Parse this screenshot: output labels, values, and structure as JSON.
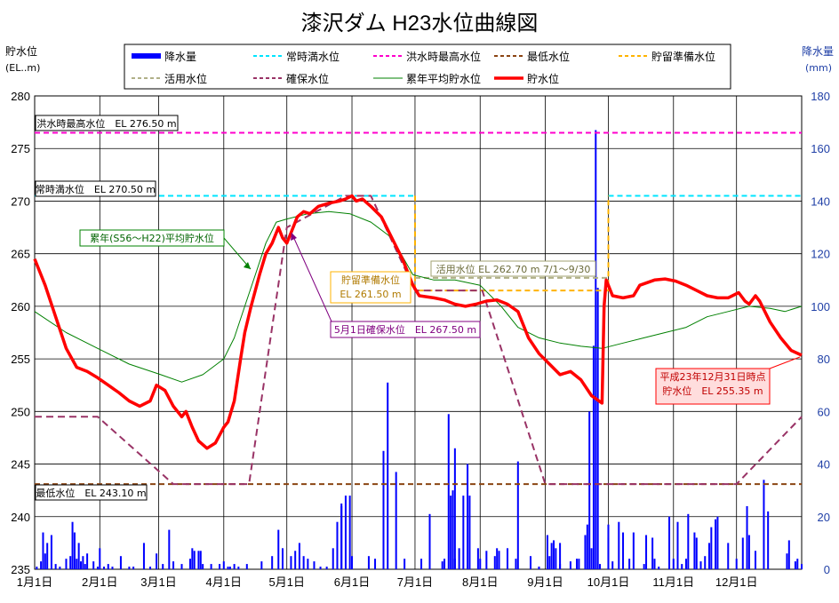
{
  "chart_data": {
    "type": "line",
    "title": "漆沢ダム H23水位曲線図",
    "y_left_label": [
      "貯水位",
      "(EL..m)"
    ],
    "y_right_label": [
      "降水量",
      "(mm)"
    ],
    "y_left_range": [
      235,
      280
    ],
    "y_left_ticks": [
      "235",
      "240",
      "245",
      "250",
      "255",
      "260",
      "265",
      "270",
      "275",
      "280"
    ],
    "y_right_range": [
      0,
      180
    ],
    "y_right_ticks": [
      "0",
      "20",
      "40",
      "60",
      "80",
      "100",
      "120",
      "140",
      "160",
      "180"
    ],
    "x_ticks": [
      "1月1日",
      "2月1日",
      "3月1日",
      "4月1日",
      "5月1日",
      "6月1日",
      "7月1日",
      "8月1日",
      "9月1日",
      "10月1日",
      "11月1日",
      "12月1日"
    ],
    "x_tick_days": [
      0,
      31,
      59,
      90,
      120,
      151,
      181,
      212,
      243,
      273,
      304,
      334
    ],
    "x_range": [
      0,
      365
    ],
    "grid": true,
    "legend_position": "top",
    "legend": [
      {
        "label": "降水量",
        "color": "#0000ff",
        "style": "bar"
      },
      {
        "label": "常時満水位",
        "color": "#00e5ff",
        "style": "dash"
      },
      {
        "label": "洪水時最高水位",
        "color": "#ff00cc",
        "style": "dash"
      },
      {
        "label": "最低水位",
        "color": "#8b4513",
        "style": "dash"
      },
      {
        "label": "貯留準備水位",
        "color": "#ffb300",
        "style": "dash"
      },
      {
        "label": "活用水位",
        "color": "#b0b088",
        "style": "dash"
      },
      {
        "label": "確保水位",
        "color": "#993366",
        "style": "dash"
      },
      {
        "label": "累年平均貯水位",
        "color": "#008000",
        "style": "thin"
      },
      {
        "label": "貯水位",
        "color": "#ff0000",
        "style": "thick"
      }
    ],
    "annotations": [
      {
        "text": "洪水時最高水位　EL 276.50 m",
        "box": "black"
      },
      {
        "text": "常時満水位　EL 270.50 m",
        "box": "black"
      },
      {
        "text": "最低水位　EL 243.10 m",
        "box": "black"
      },
      {
        "text": "累年(S56〜H22)平均貯水位",
        "box": "green"
      },
      {
        "text": "貯留準備水位\nEL 261.50 m",
        "box": "orange"
      },
      {
        "text": "活用水位 EL 262.70 m 7/1〜9/30",
        "box": "olive"
      },
      {
        "text": "5月1日確保水位　EL 267.50 m",
        "box": "purple"
      },
      {
        "text": "平成23年12月31日時点\n貯水位　EL 255.35 m",
        "box": "red"
      }
    ],
    "series": [
      {
        "name": "洪水時最高水位",
        "points": [
          [
            0,
            276.5
          ],
          [
            365,
            276.5
          ]
        ]
      },
      {
        "name": "常時満水位",
        "points": [
          [
            0,
            270.5
          ],
          [
            181,
            270.5
          ],
          [
            null,
            null
          ],
          [
            273,
            270.5
          ],
          [
            365,
            270.5
          ]
        ]
      },
      {
        "name": "最低水位",
        "points": [
          [
            0,
            243.1
          ],
          [
            365,
            243.1
          ]
        ]
      },
      {
        "name": "貯留準備水位",
        "points": [
          [
            181,
            270.5
          ],
          [
            181,
            261.5
          ],
          [
            273,
            261.5
          ],
          [
            273,
            270.5
          ]
        ]
      },
      {
        "name": "活用水位",
        "points": [
          [
            181,
            262.7
          ],
          [
            273,
            262.7
          ]
        ]
      },
      {
        "name": "確保水位",
        "points": [
          [
            0,
            249.5
          ],
          [
            30,
            249.5
          ],
          [
            66,
            243.1
          ],
          [
            102,
            243.1
          ],
          [
            120,
            267.5
          ],
          [
            148,
            270.5
          ],
          [
            160,
            270.5
          ],
          [
            181,
            261.5
          ],
          [
            213,
            261.5
          ],
          [
            243,
            243.1
          ],
          [
            334,
            243.1
          ],
          [
            365,
            249.5
          ]
        ]
      },
      {
        "name": "累年平均貯水位",
        "points": [
          [
            0,
            259.5
          ],
          [
            15,
            257.5
          ],
          [
            30,
            256
          ],
          [
            45,
            254.5
          ],
          [
            60,
            253.5
          ],
          [
            70,
            252.8
          ],
          [
            80,
            253.5
          ],
          [
            90,
            255
          ],
          [
            95,
            257
          ],
          [
            100,
            260
          ],
          [
            105,
            263
          ],
          [
            110,
            266
          ],
          [
            115,
            268
          ],
          [
            120,
            268.3
          ],
          [
            130,
            268.8
          ],
          [
            140,
            269
          ],
          [
            150,
            268.8
          ],
          [
            160,
            268
          ],
          [
            170,
            266.5
          ],
          [
            180,
            263
          ],
          [
            190,
            262.5
          ],
          [
            200,
            262.5
          ],
          [
            212,
            262
          ],
          [
            222,
            260
          ],
          [
            230,
            258
          ],
          [
            240,
            257
          ],
          [
            250,
            256.5
          ],
          [
            260,
            256.2
          ],
          [
            270,
            256
          ],
          [
            280,
            256.5
          ],
          [
            290,
            257
          ],
          [
            300,
            257.5
          ],
          [
            310,
            258
          ],
          [
            320,
            259
          ],
          [
            330,
            259.5
          ],
          [
            340,
            260
          ],
          [
            350,
            259.8
          ],
          [
            357,
            259.5
          ],
          [
            365,
            260
          ]
        ]
      },
      {
        "name": "貯水位",
        "points": [
          [
            0,
            264.5
          ],
          [
            5,
            262
          ],
          [
            10,
            259
          ],
          [
            15,
            256
          ],
          [
            20,
            254.2
          ],
          [
            25,
            253.8
          ],
          [
            30,
            253.2
          ],
          [
            35,
            252.5
          ],
          [
            40,
            251.8
          ],
          [
            45,
            251
          ],
          [
            50,
            250.5
          ],
          [
            55,
            251
          ],
          [
            58,
            252.5
          ],
          [
            62,
            252
          ],
          [
            66,
            250.5
          ],
          [
            70,
            249.5
          ],
          [
            72,
            250
          ],
          [
            75,
            248.5
          ],
          [
            78,
            247.2
          ],
          [
            82,
            246.5
          ],
          [
            86,
            247
          ],
          [
            90,
            248.5
          ],
          [
            92,
            249
          ],
          [
            95,
            251
          ],
          [
            98,
            255
          ],
          [
            100,
            257.5
          ],
          [
            103,
            260
          ],
          [
            107,
            263
          ],
          [
            110,
            265
          ],
          [
            113,
            266
          ],
          [
            116,
            267.5
          ],
          [
            118,
            266.5
          ],
          [
            120,
            266
          ],
          [
            122,
            267
          ],
          [
            125,
            268.5
          ],
          [
            128,
            269
          ],
          [
            131,
            268.8
          ],
          [
            135,
            269.5
          ],
          [
            140,
            269.8
          ],
          [
            145,
            270
          ],
          [
            148,
            270.2
          ],
          [
            151,
            270.5
          ],
          [
            153,
            270
          ],
          [
            156,
            270.2
          ],
          [
            160,
            269.5
          ],
          [
            165,
            268.5
          ],
          [
            170,
            266.5
          ],
          [
            175,
            264.5
          ],
          [
            180,
            262
          ],
          [
            183,
            261
          ],
          [
            190,
            260.8
          ],
          [
            195,
            260.6
          ],
          [
            200,
            260.2
          ],
          [
            205,
            260
          ],
          [
            210,
            260.2
          ],
          [
            215,
            260.5
          ],
          [
            220,
            260.6
          ],
          [
            225,
            260.2
          ],
          [
            230,
            259.5
          ],
          [
            235,
            257
          ],
          [
            240,
            255.5
          ],
          [
            245,
            254.5
          ],
          [
            250,
            253.5
          ],
          [
            255,
            253.8
          ],
          [
            260,
            253
          ],
          [
            265,
            251.5
          ],
          [
            270,
            250.8
          ],
          [
            271,
            260
          ],
          [
            272,
            262.5
          ],
          [
            275,
            261
          ],
          [
            280,
            260.8
          ],
          [
            285,
            261
          ],
          [
            288,
            262
          ],
          [
            295,
            262.5
          ],
          [
            300,
            262.6
          ],
          [
            305,
            262.4
          ],
          [
            310,
            262
          ],
          [
            315,
            261.5
          ],
          [
            320,
            261
          ],
          [
            325,
            260.8
          ],
          [
            330,
            260.8
          ],
          [
            335,
            261.3
          ],
          [
            338,
            260.5
          ],
          [
            340,
            260.2
          ],
          [
            343,
            261
          ],
          [
            345,
            260.5
          ],
          [
            350,
            258.5
          ],
          [
            355,
            257
          ],
          [
            360,
            255.8
          ],
          [
            365,
            255.35
          ]
        ]
      }
    ],
    "rainfall_mm": [
      [
        1,
        1
      ],
      [
        3,
        3
      ],
      [
        4,
        14
      ],
      [
        5,
        6
      ],
      [
        6,
        10
      ],
      [
        8,
        13
      ],
      [
        10,
        2
      ],
      [
        12,
        1
      ],
      [
        15,
        4
      ],
      [
        17,
        5
      ],
      [
        18,
        18
      ],
      [
        19,
        14
      ],
      [
        20,
        4
      ],
      [
        21,
        10
      ],
      [
        22,
        3
      ],
      [
        23,
        5
      ],
      [
        24,
        2
      ],
      [
        25,
        6
      ],
      [
        28,
        3
      ],
      [
        30,
        1
      ],
      [
        31,
        8
      ],
      [
        33,
        1
      ],
      [
        35,
        2
      ],
      [
        37,
        1
      ],
      [
        41,
        5
      ],
      [
        45,
        1
      ],
      [
        47,
        1
      ],
      [
        52,
        10
      ],
      [
        55,
        1
      ],
      [
        58,
        6
      ],
      [
        61,
        2
      ],
      [
        64,
        15
      ],
      [
        66,
        3
      ],
      [
        70,
        2
      ],
      [
        74,
        4
      ],
      [
        75,
        8
      ],
      [
        76,
        7
      ],
      [
        78,
        7
      ],
      [
        79,
        7
      ],
      [
        80,
        2
      ],
      [
        84,
        2
      ],
      [
        88,
        2
      ],
      [
        90,
        3
      ],
      [
        92,
        1
      ],
      [
        93,
        1
      ],
      [
        95,
        2
      ],
      [
        97,
        1
      ],
      [
        101,
        2
      ],
      [
        108,
        3
      ],
      [
        113,
        5
      ],
      [
        116,
        15
      ],
      [
        118,
        8
      ],
      [
        122,
        5
      ],
      [
        124,
        7
      ],
      [
        126,
        10
      ],
      [
        128,
        5
      ],
      [
        130,
        4
      ],
      [
        133,
        3
      ],
      [
        136,
        1
      ],
      [
        139,
        1
      ],
      [
        142,
        8
      ],
      [
        144,
        18
      ],
      [
        146,
        25
      ],
      [
        148,
        28
      ],
      [
        151,
        5
      ],
      [
        159,
        5
      ],
      [
        162,
        4
      ],
      [
        166,
        45
      ],
      [
        168,
        71
      ],
      [
        172,
        37
      ],
      [
        176,
        4
      ],
      [
        188,
        21
      ],
      [
        194,
        3
      ],
      [
        197,
        59
      ],
      [
        198,
        28
      ],
      [
        199,
        30
      ],
      [
        200,
        46
      ],
      [
        202,
        8
      ],
      [
        204,
        28
      ],
      [
        206,
        40
      ],
      [
        207,
        28
      ],
      [
        212,
        4
      ],
      [
        215,
        7
      ],
      [
        219,
        5
      ],
      [
        221,
        7
      ],
      [
        225,
        8
      ],
      [
        230,
        41
      ],
      [
        236,
        5
      ],
      [
        240,
        1
      ],
      [
        244,
        13
      ],
      [
        246,
        10
      ],
      [
        247,
        11
      ],
      [
        248,
        8
      ],
      [
        250,
        2
      ],
      [
        255,
        3
      ],
      [
        258,
        4
      ],
      [
        259,
        4
      ],
      [
        262,
        13
      ],
      [
        263,
        17
      ],
      [
        265,
        8
      ],
      [
        269,
        2
      ],
      [
        273,
        12
      ],
      [
        275,
        3
      ],
      [
        280,
        14
      ],
      [
        283,
        4
      ],
      [
        285,
        14
      ],
      [
        290,
        2
      ],
      [
        291,
        13
      ],
      [
        294,
        12
      ],
      [
        295,
        4
      ],
      [
        297,
        1
      ],
      [
        304,
        4
      ],
      [
        308,
        2
      ],
      [
        310,
        4
      ],
      [
        314,
        14
      ],
      [
        315,
        12
      ],
      [
        317,
        3
      ],
      [
        319,
        5
      ],
      [
        321,
        10
      ],
      [
        322,
        16
      ],
      [
        324,
        19
      ],
      [
        325,
        20
      ],
      [
        330,
        10
      ],
      [
        334,
        4
      ],
      [
        337,
        12
      ],
      [
        340,
        13
      ],
      [
        343,
        7
      ],
      [
        349,
        22
      ],
      [
        358,
        6
      ],
      [
        359,
        11
      ],
      [
        362,
        3
      ],
      [
        363,
        4
      ],
      [
        365,
        2
      ]
    ],
    "rainfall_mm_labeled": [
      [
        146,
        24
      ],
      [
        150,
        28
      ],
      [
        184,
        4
      ],
      [
        195,
        4
      ],
      [
        200,
        4
      ],
      [
        211,
        8
      ],
      [
        220,
        8
      ],
      [
        229,
        4
      ],
      [
        240,
        1
      ],
      [
        245,
        5
      ],
      [
        250,
        10
      ],
      [
        264,
        60
      ],
      [
        266,
        85
      ],
      [
        267,
        167
      ],
      [
        268,
        107
      ],
      [
        273,
        17
      ],
      [
        278,
        18
      ],
      [
        302,
        20
      ],
      [
        306,
        18
      ],
      [
        311,
        21
      ],
      [
        339,
        24
      ],
      [
        347,
        34
      ]
    ]
  }
}
